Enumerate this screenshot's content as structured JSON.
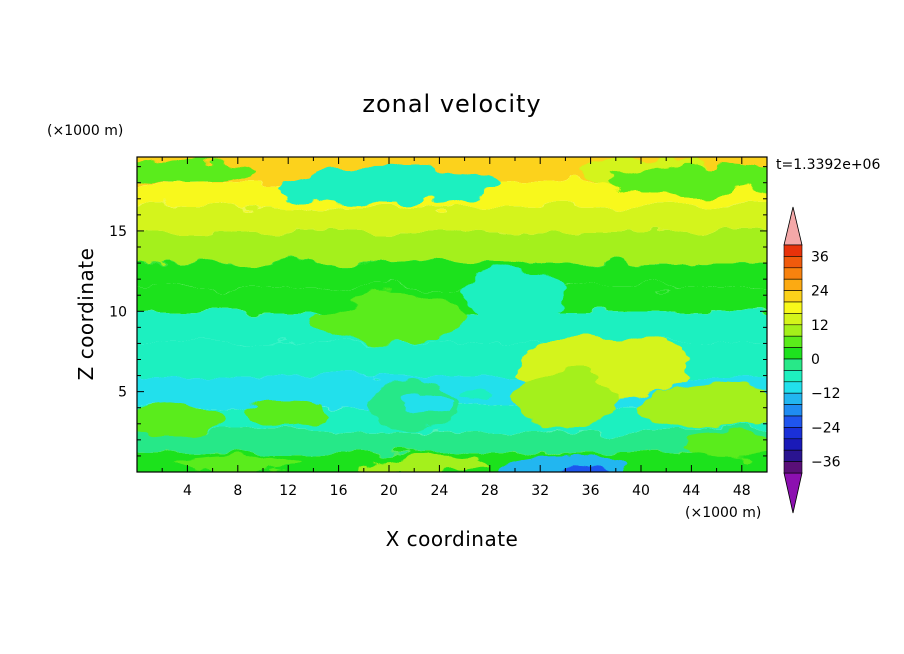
{
  "chart_data": {
    "type": "heatmap",
    "title": "zonal velocity",
    "xlabel": "X coordinate",
    "ylabel": "Z coordinate",
    "x_unit": "(×1000 m)",
    "y_unit": "(×1000 m)",
    "time_label": "t=1.3392e+06",
    "xlim": [
      0,
      50
    ],
    "ylim": [
      0,
      19.6
    ],
    "x_ticks": [
      "4",
      "8",
      "12",
      "16",
      "20",
      "24",
      "28",
      "32",
      "36",
      "40",
      "44",
      "48"
    ],
    "y_ticks": [
      "5",
      "10",
      "15"
    ],
    "colorbar": {
      "levels": [
        -40,
        -36,
        -32,
        -28,
        -24,
        -20,
        -16,
        -12,
        -8,
        -4,
        0,
        4,
        8,
        12,
        16,
        20,
        24,
        28,
        32,
        36,
        40
      ],
      "colors": [
        "#5a0f78",
        "#2a1490",
        "#1a1ab8",
        "#1a30d8",
        "#1f55ee",
        "#1f8cf2",
        "#22b6f0",
        "#22e0ec",
        "#1ef0c0",
        "#28e888",
        "#1ee21e",
        "#5aec1a",
        "#a4f01a",
        "#d4f41a",
        "#f8f81a",
        "#fcd21a",
        "#fcaa12",
        "#f8820e",
        "#f05a0c",
        "#e8320a"
      ],
      "under_color": "#8c10b0",
      "over_color": "#f4a8a8",
      "tick_labels": [
        "36",
        "24",
        "12",
        "0",
        "−12",
        "−24",
        "−36"
      ]
    },
    "field_bands": [
      {
        "z": 19.6,
        "value": 23
      },
      {
        "z": 18.0,
        "value": 18
      },
      {
        "z": 16.5,
        "value": 13
      },
      {
        "z": 15.0,
        "value": 8
      },
      {
        "z": 13.0,
        "value": 3
      },
      {
        "z": 11.5,
        "value": 0
      },
      {
        "z": 10.0,
        "value": -5
      },
      {
        "z": 8.0,
        "value": -8
      },
      {
        "z": 6.0,
        "value": -9
      },
      {
        "z": 4.0,
        "value": -6
      },
      {
        "z": 2.5,
        "value": -3
      },
      {
        "z": 1.2,
        "value": 2
      },
      {
        "z": 0.0,
        "value": 4
      }
    ],
    "anomalies": [
      {
        "x": 41,
        "z": 18.6,
        "rx": 6,
        "rz": 0.9,
        "value": 12
      },
      {
        "x": 44,
        "z": 18.2,
        "rx": 7,
        "rz": 1.0,
        "value": 6
      },
      {
        "x": 4,
        "z": 18.7,
        "rx": 6,
        "rz": 0.7,
        "value": 6
      },
      {
        "x": 20,
        "z": 17.8,
        "rx": 9,
        "rz": 1.1,
        "value": -5
      },
      {
        "x": 30,
        "z": 11.0,
        "rx": 4,
        "rz": 1.6,
        "value": -5
      },
      {
        "x": 20,
        "z": 9.5,
        "rx": 6,
        "rz": 1.5,
        "value": 6
      },
      {
        "x": 37,
        "z": 6.5,
        "rx": 7,
        "rz": 2.0,
        "value": 14
      },
      {
        "x": 46,
        "z": 4.0,
        "rx": 6,
        "rz": 1.4,
        "value": 10
      },
      {
        "x": 34,
        "z": 4.5,
        "rx": 4,
        "rz": 1.8,
        "value": 10
      },
      {
        "x": 22,
        "z": 4.2,
        "rx": 3.5,
        "rz": 1.6,
        "value": -4
      },
      {
        "x": 23,
        "z": 4.2,
        "rx": 2.2,
        "rz": 0.7,
        "value": -9
      },
      {
        "x": 27,
        "z": 4.9,
        "rx": 1.3,
        "rz": 0.35,
        "value": -5
      },
      {
        "x": 3,
        "z": 3.2,
        "rx": 4,
        "rz": 0.9,
        "value": 4
      },
      {
        "x": 12,
        "z": 3.6,
        "rx": 3,
        "rz": 0.9,
        "value": 4
      },
      {
        "x": 34,
        "z": 0.3,
        "rx": 5,
        "rz": 0.8,
        "value": -16
      },
      {
        "x": 34,
        "z": 0.1,
        "rx": 3,
        "rz": 0.35,
        "value": -22
      },
      {
        "x": 23,
        "z": 0.4,
        "rx": 5,
        "rz": 0.6,
        "value": 9
      },
      {
        "x": 8,
        "z": 0.5,
        "rx": 5,
        "rz": 0.5,
        "value": 6
      },
      {
        "x": 47,
        "z": 1.6,
        "rx": 4,
        "rz": 0.6,
        "value": 7
      }
    ]
  }
}
